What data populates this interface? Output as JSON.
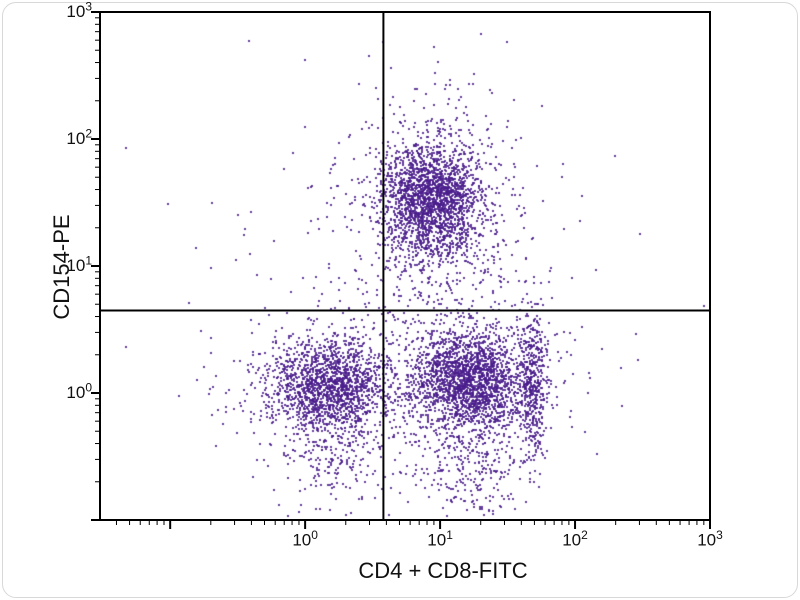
{
  "figure": {
    "background": "#ffffff",
    "frame_color": "#d8d8d8"
  },
  "chart_data": {
    "type": "scatter",
    "title": "",
    "xlabel": "CD4 + CD8-FITC",
    "ylabel": "CD154-PE",
    "x_scale": "log",
    "y_scale": "log",
    "x_range_log": [
      -1.52,
      3
    ],
    "y_range_log": [
      -1.0,
      3
    ],
    "x_ticks": [
      {
        "base": "10",
        "exp": "0",
        "log": 0
      },
      {
        "base": "10",
        "exp": "1",
        "log": 1
      },
      {
        "base": "10",
        "exp": "2",
        "log": 2
      },
      {
        "base": "10",
        "exp": "3",
        "log": 3
      }
    ],
    "y_ticks": [
      {
        "base": "10",
        "exp": "0",
        "log": 0
      },
      {
        "base": "10",
        "exp": "1",
        "log": 1
      },
      {
        "base": "10",
        "exp": "2",
        "log": 2
      },
      {
        "base": "10",
        "exp": "3",
        "log": 3
      }
    ],
    "quadrant_gate": {
      "x_log": 0.58,
      "y_log": 0.65
    },
    "axis_color": "#000000",
    "point_color": "#4a1d8c",
    "legend": "none",
    "grid": false,
    "clusters": [
      {
        "name": "cd154-pos-core",
        "cx": 0.94,
        "cy": 1.52,
        "sx": 0.18,
        "sy": 0.22,
        "n": 1800
      },
      {
        "name": "cd154-pos-halo",
        "cx": 0.96,
        "cy": 1.45,
        "sx": 0.3,
        "sy": 0.45,
        "n": 700
      },
      {
        "name": "double-neg-core",
        "cx": 0.18,
        "cy": 0.06,
        "sx": 0.22,
        "sy": 0.18,
        "n": 1400
      },
      {
        "name": "double-neg-halo",
        "cx": 0.2,
        "cy": 0.05,
        "sx": 0.35,
        "sy": 0.3,
        "n": 400
      },
      {
        "name": "double-neg-tail",
        "cx": 0.25,
        "cy": -0.5,
        "sx": 0.25,
        "sy": 0.22,
        "n": 200
      },
      {
        "name": "cd4cd8-pos-core",
        "cx": 1.22,
        "cy": 0.1,
        "sx": 0.2,
        "sy": 0.18,
        "n": 1700
      },
      {
        "name": "cd4cd8-pos-halo",
        "cx": 1.18,
        "cy": 0.1,
        "sx": 0.33,
        "sy": 0.3,
        "n": 500
      },
      {
        "name": "cd4cd8-right-streak",
        "cx": 1.68,
        "cy": 0.05,
        "sx": 0.06,
        "sy": 0.3,
        "n": 450
      },
      {
        "name": "cd4cd8-tail",
        "cx": 1.25,
        "cy": -0.55,
        "sx": 0.2,
        "sy": 0.28,
        "n": 300
      },
      {
        "name": "background-sparse",
        "cx": 0.85,
        "cy": 0.7,
        "sx": 0.8,
        "sy": 0.8,
        "n": 260
      }
    ],
    "outliers_log": [
      [
        -0.5,
        1.4
      ],
      [
        2.48,
        1.25
      ],
      [
        1.04,
        2.39
      ],
      [
        -0.8,
        0.1
      ],
      [
        2.2,
        0.35
      ],
      [
        2.35,
        -0.1
      ],
      [
        1.9,
        1.7
      ],
      [
        2.05,
        1.55
      ]
    ]
  }
}
